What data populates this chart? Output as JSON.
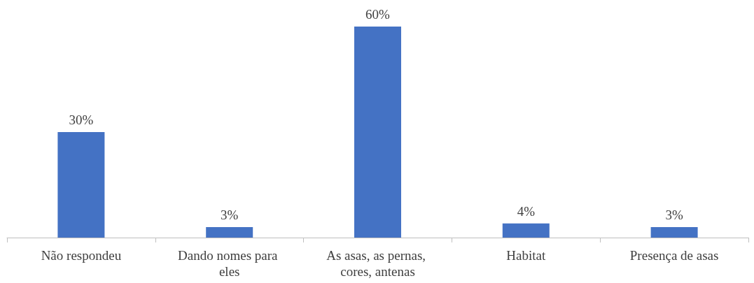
{
  "chart_data": {
    "type": "bar",
    "categories": [
      "Não respondeu",
      "Dando nomes para eles",
      "As asas, as pernas, cores, antenas",
      "Habitat",
      "Presença de asas"
    ],
    "values": [
      30,
      3,
      60,
      4,
      3
    ],
    "color": "#4472c4",
    "value_labels": [
      "30%",
      "3%",
      "60%",
      "4%",
      "3%"
    ]
  }
}
